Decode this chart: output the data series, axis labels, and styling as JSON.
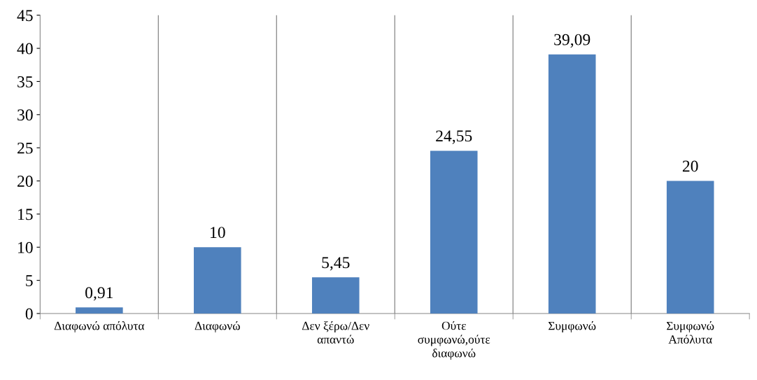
{
  "chart_data": {
    "type": "bar",
    "categories": [
      "Διαφωνώ απόλυτα",
      "Διαφωνώ",
      "Δεν ξέρω/Δεν\nαπαντώ",
      "Ούτε\nσυμφωνώ,ούτε\nδιαφωνώ",
      "Συμφωνώ",
      "Συμφωνώ\nΑπόλυτα"
    ],
    "values": [
      0.91,
      10,
      5.45,
      24.55,
      39.09,
      20
    ],
    "value_labels": [
      "0,91",
      "10",
      "5,45",
      "24,55",
      "39,09",
      "20"
    ],
    "color": "#4f81bd",
    "ylim": [
      0,
      45
    ],
    "yticks": [
      0,
      5,
      10,
      15,
      20,
      25,
      30,
      35,
      40,
      45
    ],
    "grid": "x",
    "legend": false
  }
}
